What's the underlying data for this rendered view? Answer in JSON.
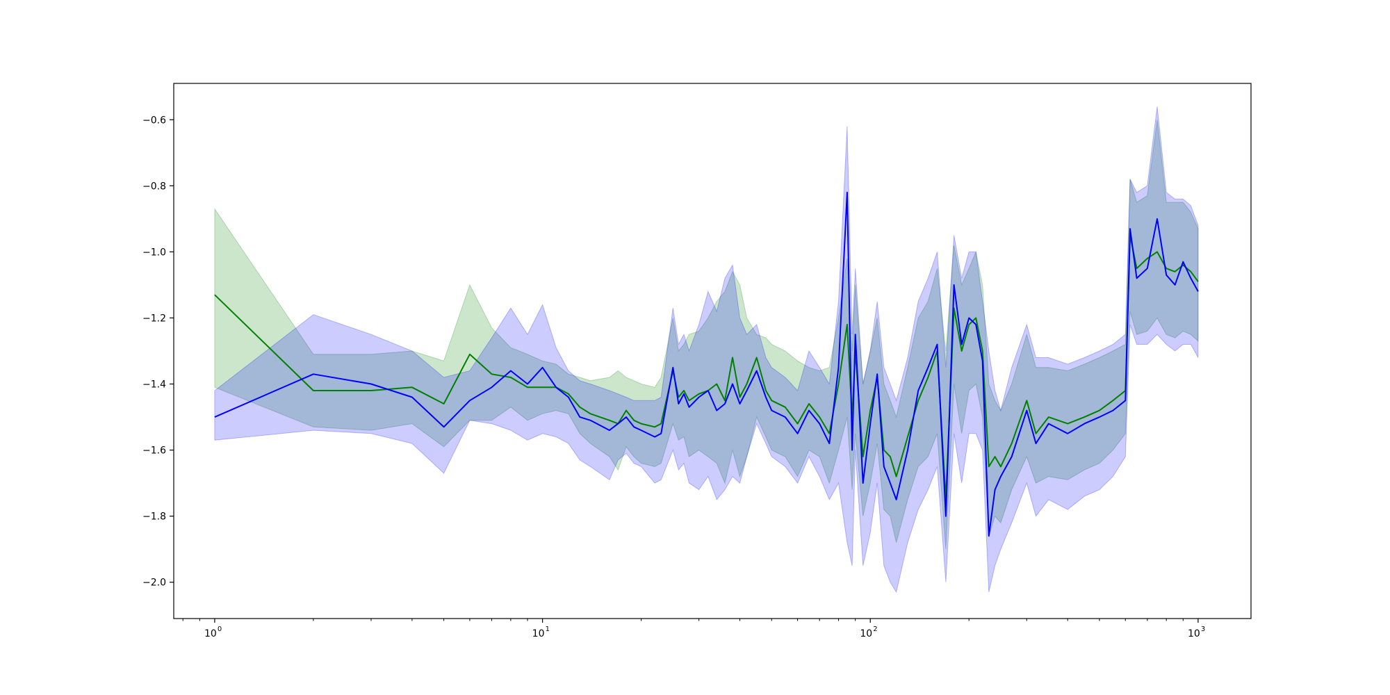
{
  "chart_data": {
    "type": "line",
    "title": "",
    "xlabel": "",
    "ylabel": "",
    "xscale": "log",
    "xlim": [
      0.75,
      1450
    ],
    "ylim": [
      -2.11,
      -0.49
    ],
    "grid": false,
    "legend": "none",
    "x_ticks": [
      {
        "value": 1,
        "base": "10",
        "exp": "0"
      },
      {
        "value": 10,
        "base": "10",
        "exp": "1"
      },
      {
        "value": 100,
        "base": "10",
        "exp": "2"
      },
      {
        "value": 1000,
        "base": "10",
        "exp": "3"
      }
    ],
    "y_ticks": [
      {
        "value": -0.6,
        "label": "−0.6"
      },
      {
        "value": -0.8,
        "label": "−0.8"
      },
      {
        "value": -1.0,
        "label": "−1.0"
      },
      {
        "value": -1.2,
        "label": "−1.2"
      },
      {
        "value": -1.4,
        "label": "−1.4"
      },
      {
        "value": -1.6,
        "label": "−1.6"
      },
      {
        "value": -1.8,
        "label": "−1.8"
      },
      {
        "value": -2.0,
        "label": "−2.0"
      }
    ],
    "series": [
      {
        "color": "#008000",
        "band_color": "#008000",
        "band_opacity": 0.2,
        "x": [
          1,
          2,
          3,
          4,
          5,
          6,
          7,
          8,
          9,
          10,
          11,
          12,
          13,
          14,
          16,
          17,
          18,
          19,
          20,
          22,
          23,
          25,
          26,
          27,
          28,
          30,
          32,
          34,
          36,
          38,
          40,
          42,
          45,
          48,
          50,
          55,
          60,
          65,
          70,
          75,
          80,
          85,
          88,
          90,
          95,
          100,
          105,
          110,
          115,
          120,
          130,
          140,
          150,
          160,
          170,
          180,
          190,
          200,
          210,
          220,
          230,
          240,
          250,
          270,
          300,
          320,
          350,
          400,
          450,
          500,
          550,
          600,
          620,
          650,
          700,
          750,
          800,
          850,
          900,
          950,
          1000
        ],
        "y": [
          -1.13,
          -1.42,
          -1.42,
          -1.41,
          -1.46,
          -1.31,
          -1.37,
          -1.38,
          -1.41,
          -1.41,
          -1.41,
          -1.43,
          -1.47,
          -1.49,
          -1.51,
          -1.52,
          -1.48,
          -1.51,
          -1.52,
          -1.53,
          -1.52,
          -1.36,
          -1.44,
          -1.42,
          -1.45,
          -1.43,
          -1.42,
          -1.4,
          -1.45,
          -1.32,
          -1.44,
          -1.4,
          -1.32,
          -1.42,
          -1.45,
          -1.47,
          -1.52,
          -1.46,
          -1.5,
          -1.55,
          -1.4,
          -1.22,
          -1.5,
          -1.3,
          -1.62,
          -1.48,
          -1.38,
          -1.6,
          -1.62,
          -1.68,
          -1.56,
          -1.45,
          -1.38,
          -1.3,
          -1.75,
          -1.17,
          -1.3,
          -1.22,
          -1.2,
          -1.3,
          -1.65,
          -1.62,
          -1.65,
          -1.58,
          -1.45,
          -1.55,
          -1.5,
          -1.52,
          -1.5,
          -1.48,
          -1.45,
          -1.42,
          -0.95,
          -1.05,
          -1.02,
          -1.0,
          -1.05,
          -1.06,
          -1.04,
          -1.06,
          -1.09
        ],
        "upper": [
          -0.87,
          -1.31,
          -1.31,
          -1.3,
          -1.33,
          -1.1,
          -1.23,
          -1.29,
          -1.31,
          -1.33,
          -1.34,
          -1.37,
          -1.38,
          -1.39,
          -1.38,
          -1.36,
          -1.38,
          -1.39,
          -1.4,
          -1.41,
          -1.38,
          -1.2,
          -1.3,
          -1.28,
          -1.25,
          -1.24,
          -1.2,
          -1.15,
          -1.12,
          -1.06,
          -1.1,
          -1.2,
          -1.25,
          -1.26,
          -1.28,
          -1.3,
          -1.33,
          -1.35,
          -1.36,
          -1.35,
          -1.2,
          -1.02,
          -1.3,
          -1.1,
          -1.4,
          -1.3,
          -1.2,
          -1.4,
          -1.45,
          -1.5,
          -1.35,
          -1.2,
          -1.15,
          -1.05,
          -1.3,
          -0.98,
          -1.1,
          -1.05,
          -1.0,
          -1.1,
          -1.4,
          -1.45,
          -1.48,
          -1.4,
          -1.25,
          -1.35,
          -1.35,
          -1.36,
          -1.34,
          -1.32,
          -1.3,
          -1.28,
          -0.78,
          -0.85,
          -0.83,
          -0.6,
          -0.85,
          -0.85,
          -0.85,
          -0.88,
          -0.93
        ],
        "lower": [
          -1.41,
          -1.53,
          -1.54,
          -1.52,
          -1.59,
          -1.51,
          -1.51,
          -1.47,
          -1.51,
          -1.49,
          -1.48,
          -1.49,
          -1.55,
          -1.58,
          -1.62,
          -1.66,
          -1.59,
          -1.62,
          -1.64,
          -1.65,
          -1.64,
          -1.52,
          -1.57,
          -1.56,
          -1.62,
          -1.6,
          -1.62,
          -1.64,
          -1.7,
          -1.6,
          -1.68,
          -1.62,
          -1.5,
          -1.56,
          -1.6,
          -1.62,
          -1.68,
          -1.6,
          -1.62,
          -1.7,
          -1.6,
          -1.5,
          -1.72,
          -1.55,
          -1.8,
          -1.7,
          -1.58,
          -1.78,
          -1.8,
          -1.88,
          -1.75,
          -1.65,
          -1.62,
          -1.55,
          -1.9,
          -1.4,
          -1.55,
          -1.42,
          -1.4,
          -1.5,
          -1.86,
          -1.8,
          -1.82,
          -1.72,
          -1.62,
          -1.7,
          -1.68,
          -1.69,
          -1.66,
          -1.64,
          -1.6,
          -1.55,
          -1.18,
          -1.25,
          -1.24,
          -1.2,
          -1.25,
          -1.26,
          -1.24,
          -1.25,
          -1.27
        ]
      },
      {
        "color": "#0000ff",
        "band_color": "#0000ff",
        "band_opacity": 0.2,
        "x": [
          1,
          2,
          3,
          4,
          5,
          6,
          7,
          8,
          9,
          10,
          11,
          12,
          13,
          14,
          16,
          17,
          18,
          19,
          20,
          22,
          23,
          25,
          26,
          27,
          28,
          30,
          32,
          34,
          36,
          38,
          40,
          42,
          45,
          48,
          50,
          55,
          60,
          65,
          70,
          75,
          80,
          85,
          88,
          90,
          95,
          100,
          105,
          110,
          115,
          120,
          130,
          140,
          150,
          160,
          170,
          180,
          190,
          200,
          210,
          220,
          230,
          240,
          250,
          270,
          300,
          320,
          350,
          400,
          450,
          500,
          550,
          600,
          620,
          650,
          700,
          750,
          800,
          850,
          900,
          950,
          1000
        ],
        "y": [
          -1.5,
          -1.37,
          -1.4,
          -1.44,
          -1.53,
          -1.45,
          -1.41,
          -1.36,
          -1.4,
          -1.35,
          -1.41,
          -1.44,
          -1.5,
          -1.51,
          -1.54,
          -1.52,
          -1.5,
          -1.53,
          -1.54,
          -1.56,
          -1.55,
          -1.35,
          -1.46,
          -1.43,
          -1.47,
          -1.44,
          -1.42,
          -1.48,
          -1.46,
          -1.4,
          -1.46,
          -1.42,
          -1.36,
          -1.44,
          -1.48,
          -1.5,
          -1.55,
          -1.48,
          -1.52,
          -1.58,
          -1.35,
          -0.82,
          -1.6,
          -1.25,
          -1.7,
          -1.52,
          -1.37,
          -1.65,
          -1.7,
          -1.75,
          -1.6,
          -1.42,
          -1.35,
          -1.28,
          -1.8,
          -1.1,
          -1.28,
          -1.2,
          -1.22,
          -1.33,
          -1.86,
          -1.72,
          -1.68,
          -1.62,
          -1.48,
          -1.58,
          -1.52,
          -1.55,
          -1.52,
          -1.5,
          -1.48,
          -1.45,
          -0.93,
          -1.08,
          -1.05,
          -0.9,
          -1.07,
          -1.1,
          -1.03,
          -1.08,
          -1.12
        ],
        "upper": [
          -1.42,
          -1.19,
          -1.25,
          -1.3,
          -1.38,
          -1.36,
          -1.26,
          -1.17,
          -1.25,
          -1.16,
          -1.29,
          -1.36,
          -1.39,
          -1.4,
          -1.42,
          -1.43,
          -1.44,
          -1.45,
          -1.45,
          -1.45,
          -1.44,
          -1.17,
          -1.28,
          -1.25,
          -1.3,
          -1.22,
          -1.12,
          -1.18,
          -1.08,
          -1.04,
          -1.2,
          -1.25,
          -1.22,
          -1.32,
          -1.35,
          -1.38,
          -1.42,
          -1.3,
          -1.35,
          -1.4,
          -1.15,
          -0.62,
          -1.25,
          -1.05,
          -1.4,
          -1.3,
          -1.15,
          -1.35,
          -1.4,
          -1.45,
          -1.32,
          -1.15,
          -1.08,
          -1.0,
          -1.35,
          -0.95,
          -1.08,
          -1.0,
          -1.0,
          -1.15,
          -1.3,
          -1.42,
          -1.48,
          -1.35,
          -1.22,
          -1.32,
          -1.32,
          -1.34,
          -1.32,
          -1.3,
          -1.28,
          -1.25,
          -0.78,
          -0.82,
          -0.8,
          -0.56,
          -0.82,
          -0.84,
          -0.84,
          -0.86,
          -0.92
        ],
        "lower": [
          -1.57,
          -1.54,
          -1.55,
          -1.58,
          -1.67,
          -1.51,
          -1.52,
          -1.54,
          -1.57,
          -1.55,
          -1.56,
          -1.58,
          -1.63,
          -1.65,
          -1.69,
          -1.63,
          -1.61,
          -1.64,
          -1.65,
          -1.7,
          -1.69,
          -1.6,
          -1.66,
          -1.64,
          -1.7,
          -1.72,
          -1.68,
          -1.75,
          -1.72,
          -1.68,
          -1.7,
          -1.62,
          -1.52,
          -1.58,
          -1.62,
          -1.65,
          -1.7,
          -1.62,
          -1.68,
          -1.75,
          -1.7,
          -1.88,
          -1.95,
          -1.6,
          -1.95,
          -1.85,
          -1.7,
          -1.95,
          -2.0,
          -2.03,
          -1.88,
          -1.78,
          -1.72,
          -1.65,
          -2.0,
          -1.55,
          -1.7,
          -1.55,
          -1.55,
          -1.6,
          -2.03,
          -1.95,
          -1.9,
          -1.82,
          -1.7,
          -1.8,
          -1.75,
          -1.78,
          -1.74,
          -1.72,
          -1.68,
          -1.62,
          -1.22,
          -1.28,
          -1.28,
          -1.25,
          -1.28,
          -1.3,
          -1.28,
          -1.28,
          -1.32
        ]
      }
    ]
  }
}
